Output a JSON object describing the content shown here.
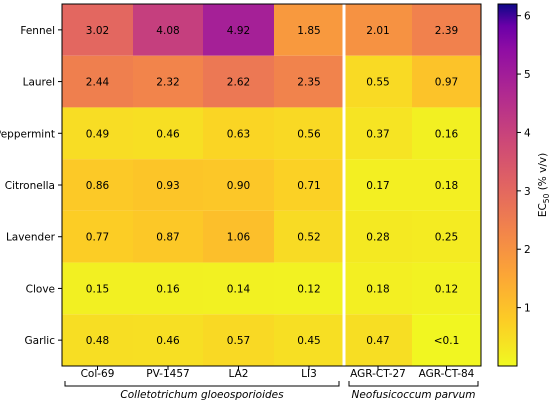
{
  "chart_data": {
    "type": "heatmap",
    "rows": [
      "Fennel",
      "Laurel",
      "Peppermint",
      "Citronella",
      "Lavender",
      "Clove",
      "Garlic"
    ],
    "columns": [
      "Col-69",
      "PV-1457",
      "LA2",
      "LI3",
      "AGR-CT-27",
      "AGR-CT-84"
    ],
    "values": [
      [
        "3.02",
        "4.08",
        "4.92",
        "1.85",
        "2.01",
        "2.39"
      ],
      [
        "2.44",
        "2.32",
        "2.62",
        "2.35",
        "0.55",
        "0.97"
      ],
      [
        "0.49",
        "0.46",
        "0.63",
        "0.56",
        "0.37",
        "0.16"
      ],
      [
        "0.86",
        "0.93",
        "0.90",
        "0.71",
        "0.17",
        "0.18"
      ],
      [
        "0.77",
        "0.87",
        "1.06",
        "0.52",
        "0.28",
        "0.25"
      ],
      [
        "0.15",
        "0.16",
        "0.14",
        "0.12",
        "0.18",
        "0.12"
      ],
      [
        "0.48",
        "0.46",
        "0.57",
        "0.45",
        "0.47",
        "<0.1"
      ]
    ],
    "groups": [
      {
        "label": "Colletotrichum gloeosporioides",
        "columns": [
          "Col-69",
          "PV-1457",
          "LA2",
          "LI3"
        ]
      },
      {
        "label": "Neofusicoccum parvum",
        "columns": [
          "AGR-CT-27",
          "AGR-CT-84"
        ]
      }
    ],
    "colorbar": {
      "label_main": "EC",
      "label_sub": "50",
      "label_unit": " (% v/v)",
      "min": 0,
      "max": 6.2,
      "ticks": [
        1,
        2,
        3,
        4,
        5,
        6
      ],
      "colormap": "plasma_r"
    }
  }
}
